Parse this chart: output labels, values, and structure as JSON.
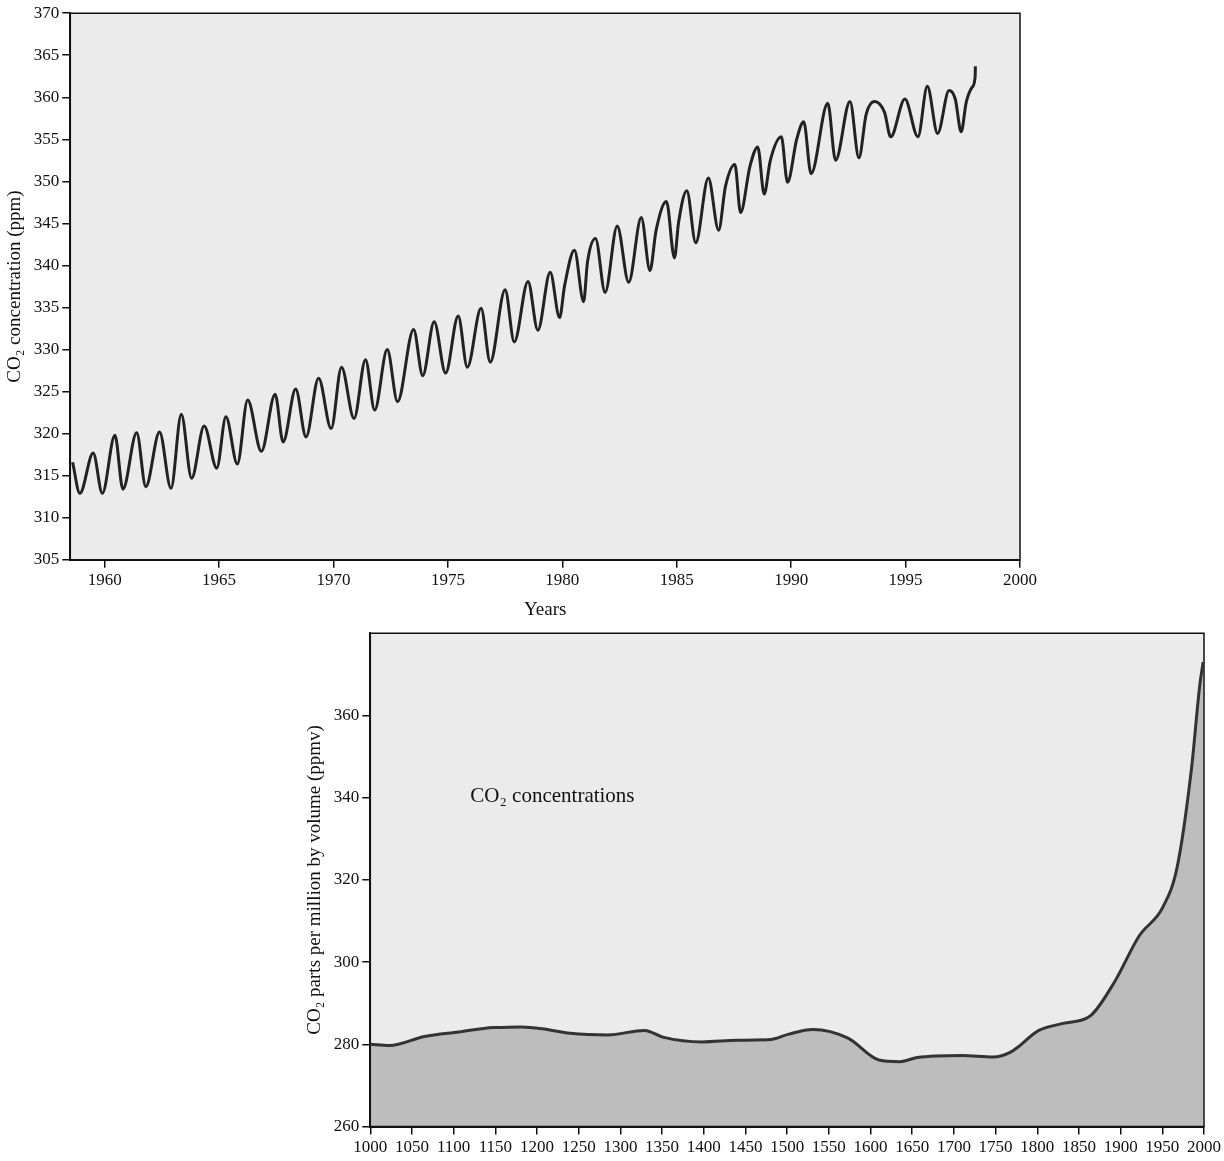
{
  "chart_data": [
    {
      "type": "line",
      "ylabel": "CO₂ concentration (ppm)",
      "xlabel": "Years",
      "xlim": [
        1958.5,
        2000
      ],
      "xticks": [
        1960,
        1965,
        1970,
        1975,
        1980,
        1985,
        1990,
        1995,
        2000
      ],
      "ylim": [
        305,
        370
      ],
      "yticks": [
        305,
        310,
        315,
        320,
        325,
        330,
        335,
        340,
        345,
        350,
        355,
        360,
        365,
        370
      ],
      "grid": false,
      "legend": false,
      "series": [
        {
          "color": "#222222",
          "x": [
            1958.6,
            1958.92,
            1959.5,
            1959.9,
            1960.45,
            1960.8,
            1961.4,
            1961.8,
            1962.4,
            1962.9,
            1963.35,
            1963.8,
            1964.35,
            1964.9,
            1965.3,
            1965.8,
            1966.25,
            1966.85,
            1967.45,
            1967.8,
            1968.35,
            1968.8,
            1969.35,
            1969.9,
            1970.35,
            1970.9,
            1971.4,
            1971.8,
            1972.35,
            1972.8,
            1973.5,
            1973.9,
            1974.4,
            1974.9,
            1975.45,
            1975.85,
            1976.45,
            1976.85,
            1977.5,
            1977.9,
            1978.5,
            1978.93,
            1979.47,
            1979.88,
            1980.1,
            1980.53,
            1980.93,
            1981.1,
            1981.45,
            1981.87,
            1982.4,
            1982.9,
            1983.45,
            1983.83,
            1984.1,
            1984.55,
            1984.9,
            1985.08,
            1985.44,
            1985.83,
            1986.38,
            1986.83,
            1987.13,
            1987.54,
            1987.79,
            1988.2,
            1988.54,
            1988.82,
            1989.09,
            1989.57,
            1989.84,
            1990.25,
            1990.55,
            1990.87,
            1991.6,
            1991.94,
            1992.57,
            1992.96,
            1993.28,
            1993.64,
            1994.08,
            1994.35,
            1994.97,
            1995.54,
            1995.95,
            1996.4,
            1996.9,
            1997.17,
            1997.43,
            1997.65,
            1997.91,
            1998.04,
            1998.05
          ],
          "values": [
            316.6,
            312.9,
            317.7,
            312.9,
            319.8,
            313.4,
            320.1,
            313.7,
            320.2,
            313.5,
            322.3,
            314.7,
            320.9,
            315.9,
            322.0,
            316.4,
            324.0,
            317.9,
            324.7,
            319.0,
            325.3,
            319.6,
            326.6,
            320.6,
            327.9,
            321.8,
            328.8,
            322.8,
            330.0,
            323.8,
            332.4,
            326.9,
            333.3,
            327.2,
            334.0,
            327.9,
            334.9,
            328.5,
            337.1,
            330.9,
            338.1,
            332.3,
            339.2,
            333.8,
            337.6,
            341.8,
            335.7,
            340.4,
            343.2,
            336.8,
            344.7,
            338.0,
            345.7,
            339.4,
            344.2,
            347.6,
            340.9,
            345.1,
            348.9,
            342.7,
            350.4,
            344.2,
            349.4,
            352.0,
            346.3,
            351.8,
            354.1,
            348.5,
            352.5,
            355.3,
            349.9,
            355.1,
            357.1,
            350.9,
            359.3,
            352.5,
            359.5,
            352.8,
            358.0,
            359.5,
            358.2,
            355.3,
            359.8,
            355.3,
            361.3,
            355.7,
            360.8,
            359.8,
            355.9,
            359.4,
            361.2,
            362.5,
            363.7
          ]
        }
      ]
    },
    {
      "type": "area",
      "ylabel": "CO₂ parts per million by volume (ppmv)",
      "xlim": [
        1000,
        2000
      ],
      "xticks": [
        1000,
        1050,
        1100,
        1150,
        1200,
        1250,
        1300,
        1350,
        1400,
        1450,
        1500,
        1550,
        1600,
        1650,
        1700,
        1750,
        1800,
        1850,
        1900,
        1950,
        2000
      ],
      "ylim": [
        260,
        380
      ],
      "yticks": [
        260,
        280,
        300,
        320,
        340,
        360
      ],
      "grid": false,
      "legend": false,
      "annotations": [
        "CO₂ concentrations"
      ],
      "series": [
        {
          "color": "#333333",
          "x": [
            1000,
            1023,
            1065,
            1106,
            1148,
            1181,
            1206,
            1240,
            1285,
            1329,
            1352,
            1398,
            1440,
            1481,
            1502,
            1531,
            1573,
            1610,
            1635,
            1656,
            1710,
            1747,
            1768,
            1802,
            1831,
            1864,
            1893,
            1922,
            1951,
            1968,
            1985,
            1995,
            1999
          ],
          "values": [
            280,
            279.7,
            281.9,
            283,
            284.1,
            284.2,
            283.8,
            282.7,
            282.3,
            283.4,
            281.7,
            280.6,
            281,
            281.2,
            282.5,
            283.6,
            281.5,
            276.2,
            275.8,
            276.8,
            277.3,
            276.9,
            278.1,
            283.4,
            285.1,
            287,
            295.3,
            306.3,
            313.5,
            323.3,
            347.1,
            367.5,
            373
          ]
        }
      ]
    }
  ]
}
